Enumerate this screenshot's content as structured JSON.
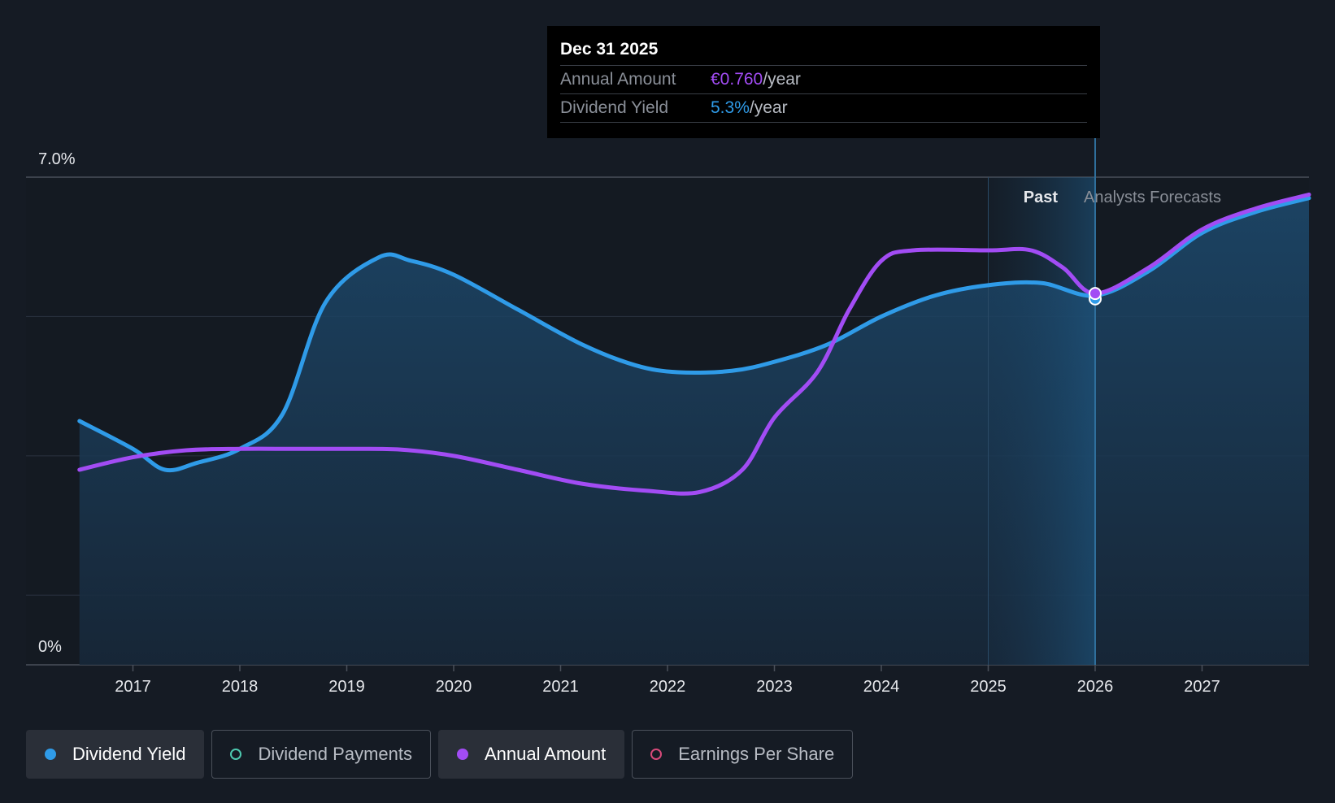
{
  "tooltip": {
    "date": "Dec 31 2025",
    "annual_label": "Annual Amount",
    "annual_value": "€0.760",
    "annual_unit": "/year",
    "yield_label": "Dividend Yield",
    "yield_value": "5.3%",
    "yield_unit": "/year"
  },
  "legend": [
    {
      "label": "Dividend Yield",
      "color": "#2f9be8",
      "active": true,
      "filled": true
    },
    {
      "label": "Dividend Payments",
      "color": "#4ec9b0",
      "active": false,
      "filled": false
    },
    {
      "label": "Annual Amount",
      "color": "#a24cf4",
      "active": true,
      "filled": true
    },
    {
      "label": "Earnings Per Share",
      "color": "#d84a7a",
      "active": false,
      "filled": false
    }
  ],
  "chart_data": {
    "type": "line",
    "y_axis": {
      "min": 0,
      "max": 7.0,
      "top_label": "7.0%",
      "bottom_label": "0%"
    },
    "x_axis": {
      "min": 2016.0,
      "max": 2028.0,
      "ticks": [
        "2017",
        "2018",
        "2019",
        "2020",
        "2021",
        "2022",
        "2023",
        "2024",
        "2025",
        "2026",
        "2027"
      ]
    },
    "regions": {
      "past_label": "Past",
      "forecast_label": "Analysts Forecasts",
      "divider_x": 2026.0
    },
    "series": [
      {
        "name": "Dividend Yield",
        "color": "#2f9be8",
        "area": true,
        "points": [
          [
            2016.5,
            3.5
          ],
          [
            2017.0,
            3.1
          ],
          [
            2017.3,
            2.8
          ],
          [
            2017.6,
            2.9
          ],
          [
            2018.0,
            3.1
          ],
          [
            2018.4,
            3.6
          ],
          [
            2018.8,
            5.2
          ],
          [
            2019.3,
            5.85
          ],
          [
            2019.6,
            5.8
          ],
          [
            2020.0,
            5.6
          ],
          [
            2020.6,
            5.1
          ],
          [
            2021.2,
            4.6
          ],
          [
            2021.7,
            4.3
          ],
          [
            2022.1,
            4.2
          ],
          [
            2022.6,
            4.22
          ],
          [
            2023.0,
            4.35
          ],
          [
            2023.5,
            4.6
          ],
          [
            2024.0,
            5.0
          ],
          [
            2024.5,
            5.3
          ],
          [
            2025.0,
            5.45
          ],
          [
            2025.5,
            5.48
          ],
          [
            2026.0,
            5.3
          ],
          [
            2026.5,
            5.65
          ],
          [
            2027.0,
            6.2
          ],
          [
            2027.5,
            6.5
          ],
          [
            2028.0,
            6.7
          ]
        ]
      },
      {
        "name": "Annual Amount",
        "color": "#a24cf4",
        "area": false,
        "points": [
          [
            2016.5,
            2.8
          ],
          [
            2017.0,
            2.98
          ],
          [
            2017.5,
            3.08
          ],
          [
            2018.0,
            3.1
          ],
          [
            2018.5,
            3.1
          ],
          [
            2019.0,
            3.1
          ],
          [
            2019.5,
            3.09
          ],
          [
            2020.0,
            3.0
          ],
          [
            2020.6,
            2.8
          ],
          [
            2021.2,
            2.6
          ],
          [
            2021.8,
            2.5
          ],
          [
            2022.3,
            2.48
          ],
          [
            2022.7,
            2.8
          ],
          [
            2023.0,
            3.55
          ],
          [
            2023.4,
            4.2
          ],
          [
            2023.7,
            5.1
          ],
          [
            2024.0,
            5.8
          ],
          [
            2024.3,
            5.95
          ],
          [
            2025.0,
            5.95
          ],
          [
            2025.4,
            5.95
          ],
          [
            2025.7,
            5.7
          ],
          [
            2026.0,
            5.33
          ],
          [
            2026.5,
            5.7
          ],
          [
            2027.0,
            6.25
          ],
          [
            2027.5,
            6.55
          ],
          [
            2028.0,
            6.75
          ]
        ]
      }
    ],
    "highlight": {
      "x": 2026.0,
      "annual_amount": 5.33,
      "dividend_yield": 5.3
    }
  }
}
